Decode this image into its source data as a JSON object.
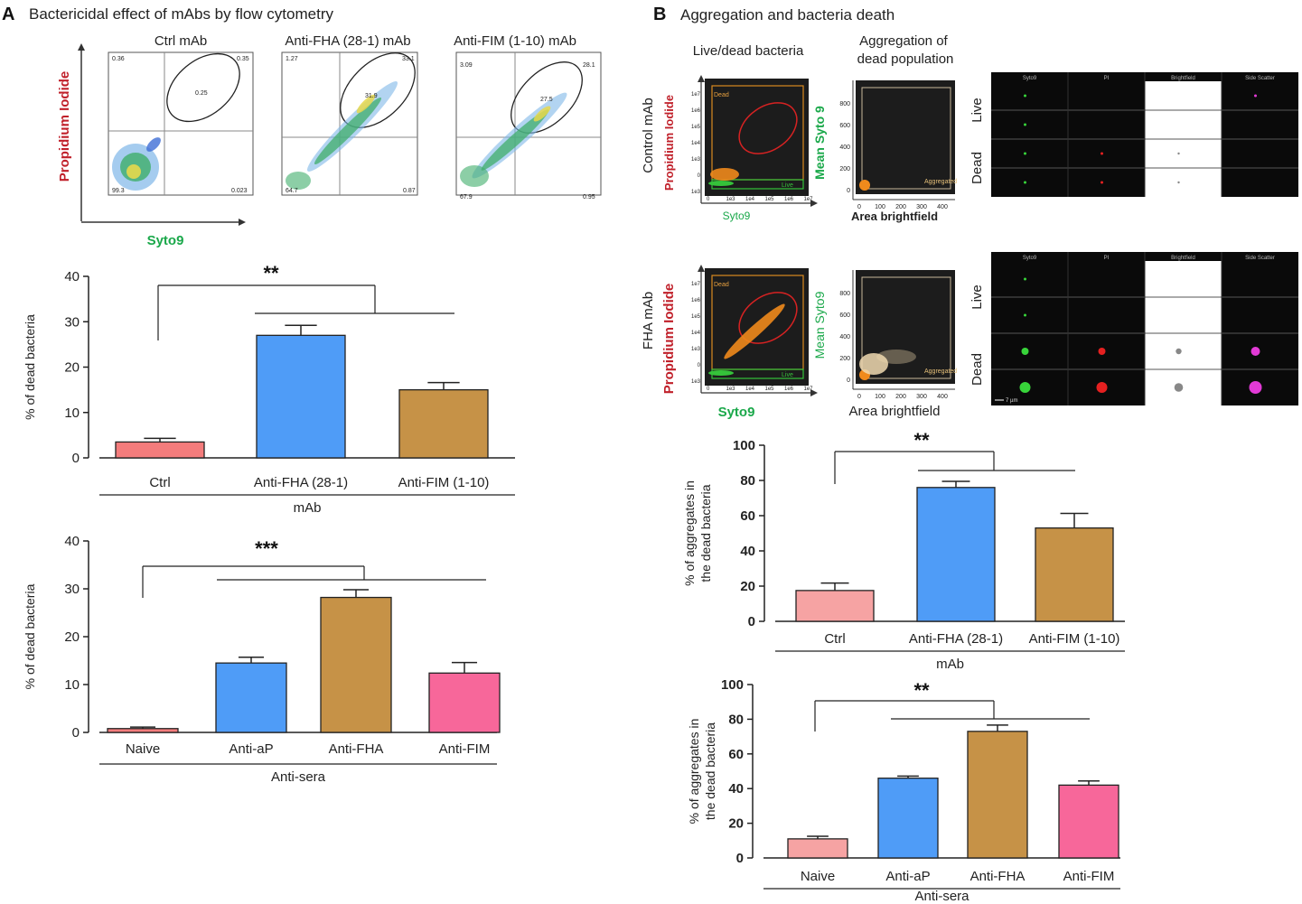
{
  "panel_a": {
    "letter": "A",
    "title": "Bactericidal effect of mAbs by flow cytometry",
    "flow": {
      "ylabel": "Propidium Iodide",
      "xlabel": "Syto9",
      "plots": [
        {
          "title": "Ctrl mAb",
          "q_ul": "0.36",
          "q_ur": "0.35",
          "q_ll": "99.3",
          "q_lr": "0.023",
          "gate": "0.25"
        },
        {
          "title": "Anti-FHA (28-1) mAb",
          "q_ul": "1.27",
          "q_ur": "33.1",
          "q_ll": "64.7",
          "q_lr": "0.87",
          "gate": "31.9"
        },
        {
          "title": "Anti-FIM  (1-10) mAb",
          "q_ul": "3.09",
          "q_ur": "28.1",
          "q_ll": "67.9",
          "q_lr": "0.95",
          "gate": "27.5"
        }
      ]
    },
    "significance_1": "**",
    "significance_2": "***"
  },
  "panel_b": {
    "letter": "B",
    "title": "Aggregation and bacteria death",
    "col_live_dead": "Live/dead bacteria",
    "col_aggregation": "Aggregation of\ndead population",
    "rows": [
      {
        "label": "Control mAb",
        "pi_label": "Propidium Iodide",
        "syto_label": "Syto9",
        "mean_syto_label": "Mean Syto 9",
        "area_label": "Area brightfield"
      },
      {
        "label": "FHA mAb",
        "pi_label": "Propidium Iodide",
        "syto_label": "Syto9",
        "mean_syto_label": "Mean Syto9",
        "area_label": "Area brightfield"
      }
    ],
    "gate_dead": "Dead",
    "gate_live": "Live",
    "gate_aggregated": "Aggregated",
    "flow_x_ticks": [
      "0",
      "1e3",
      "1e4",
      "1e5",
      "1e6",
      "1e7"
    ],
    "flow_y_ticks": [
      "1e3",
      "0",
      "1e3",
      "1e4",
      "1e5",
      "1e6",
      "1e7"
    ],
    "agg_x_ticks": [
      "0",
      "100",
      "200",
      "300",
      "400"
    ],
    "agg_y_ticks": [
      "0",
      "200",
      "400",
      "600",
      "800"
    ],
    "image_channels": [
      "Syto9",
      "PI",
      "Brightfield",
      "Side Scatter"
    ],
    "image_rows": [
      "Live",
      "Dead"
    ],
    "scale_bar": "7 µm",
    "significance_1": "**",
    "significance_2": "**"
  },
  "chart_data": [
    {
      "type": "bar",
      "title": "",
      "categories": [
        "Ctrl",
        "Anti-FHA (28-1)",
        "Anti-FIM  (1-10)"
      ],
      "values": [
        3.5,
        27,
        15
      ],
      "errors": [
        0.8,
        2.2,
        1.6
      ],
      "colors": [
        "#f47c7c",
        "#4f9cf7",
        "#c69247"
      ],
      "xlabel": "mAb",
      "ylabel": "% of dead bacteria",
      "ylim": [
        0,
        40
      ],
      "yticks": [
        "0",
        "10",
        "20",
        "30",
        "40"
      ]
    },
    {
      "type": "bar",
      "title": "",
      "categories": [
        "Naive",
        "Anti-aP",
        "Anti-FHA",
        "Anti-FIM"
      ],
      "values": [
        0.8,
        14.5,
        28.2,
        12.4
      ],
      "errors": [
        0.3,
        1.2,
        1.6,
        2.2
      ],
      "colors": [
        "#f47c7c",
        "#4f9cf7",
        "#c69247",
        "#f7679a"
      ],
      "xlabel": "Anti-sera",
      "ylabel": "% of dead bacteria",
      "ylim": [
        0,
        40
      ],
      "yticks": [
        "0",
        "10",
        "20",
        "30",
        "40"
      ]
    },
    {
      "type": "bar",
      "title": "",
      "categories": [
        "Ctrl",
        "Anti-FHA (28-1)",
        "Anti-FIM  (1-10)"
      ],
      "values": [
        17.5,
        76,
        53
      ],
      "errors": [
        4.2,
        3.5,
        8.3
      ],
      "colors": [
        "#f6a3a3",
        "#4f9cf7",
        "#c69247"
      ],
      "xlabel": "mAb",
      "ylabel": "% of aggregates in\nthe dead bacteria",
      "ylim": [
        0,
        100
      ],
      "yticks": [
        "0",
        "20",
        "40",
        "60",
        "80",
        "100"
      ]
    },
    {
      "type": "bar",
      "title": "",
      "categories": [
        "Naive",
        "Anti-aP",
        "Anti-FHA",
        "Anti-FIM"
      ],
      "values": [
        11,
        46,
        73,
        42
      ],
      "errors": [
        1.5,
        1.2,
        3.6,
        2.4
      ],
      "colors": [
        "#f6a3a3",
        "#4f9cf7",
        "#c69247",
        "#f7679a"
      ],
      "xlabel": "Anti-sera",
      "ylabel": "% of aggregates in\nthe dead bacteria",
      "ylim": [
        0,
        100
      ],
      "yticks": [
        "0",
        "20",
        "40",
        "60",
        "80",
        "100"
      ]
    }
  ]
}
